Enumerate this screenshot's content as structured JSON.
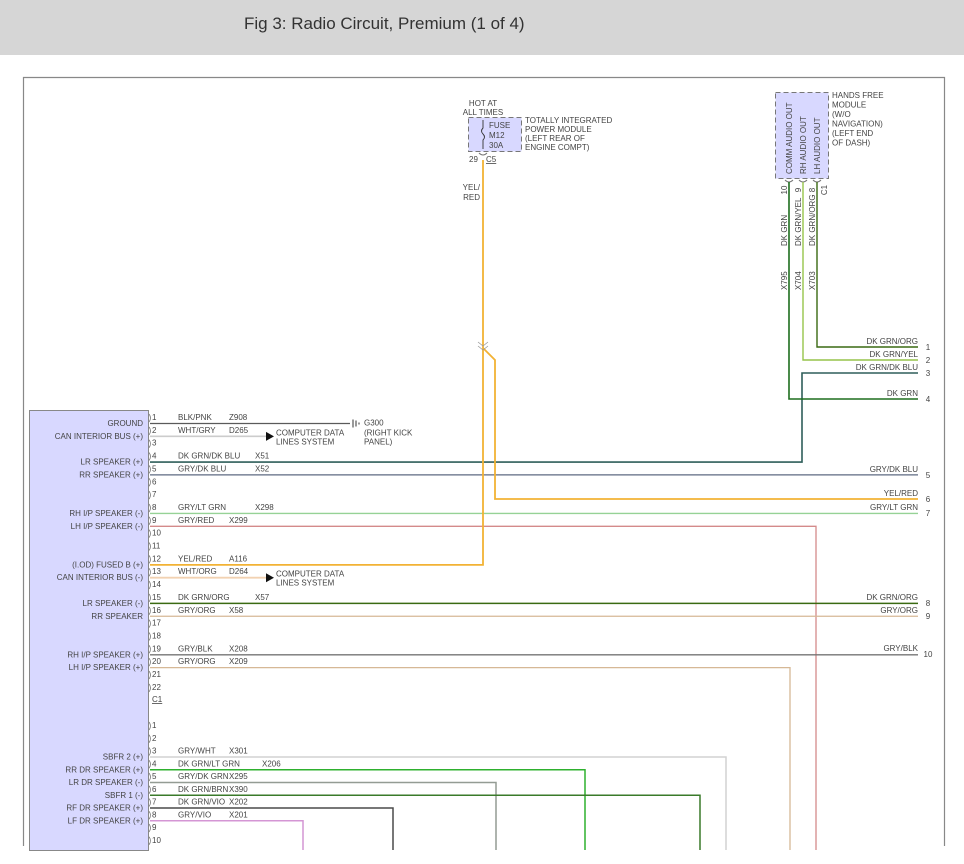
{
  "header": {
    "title": "Fig 3: Radio Circuit, Premium (1 of 4)"
  },
  "fuse": {
    "hot_label": [
      "HOT AT",
      "ALL TIMES"
    ],
    "fuse_text": [
      "FUSE",
      "M12",
      "30A"
    ],
    "module_label": [
      "TOTALLY INTEGRATED",
      "POWER MODULE",
      "(LEFT REAR OF",
      "ENGINE COMPT)"
    ],
    "pin": "29",
    "connector": "C5",
    "wire_color": [
      "YEL/",
      "RED"
    ]
  },
  "hands_free": {
    "module_label": [
      "HANDS FREE",
      "MODULE",
      "(W/O",
      "NAVIGATION)",
      "(LEFT END",
      "OF DASH)"
    ],
    "connector": "C1",
    "pins": [
      {
        "func": "COMM AUDIO OUT",
        "pin": "10",
        "color": "DK GRN",
        "circuit": "X795"
      },
      {
        "func": "RH AUDIO OUT",
        "pin": "9",
        "color": "DK GRN/YEL",
        "circuit": "X704"
      },
      {
        "func": "LH AUDIO OUT",
        "pin": "8",
        "color": "DK GRN/ORG",
        "circuit": "X703"
      }
    ]
  },
  "ground": {
    "label": "G300",
    "location": [
      "(RIGHT KICK",
      "PANEL)"
    ]
  },
  "data_lines_label": [
    "COMPUTER DATA",
    "LINES SYSTEM"
  ],
  "radio_c1": {
    "connector": "C1",
    "pins": [
      {
        "pin": "1",
        "func": "GROUND",
        "color": "BLK/PNK",
        "circuit": "Z908"
      },
      {
        "pin": "2",
        "func": "CAN INTERIOR BUS (+)",
        "color": "WHT/GRY",
        "circuit": "D265"
      },
      {
        "pin": "3",
        "func": "",
        "color": "",
        "circuit": ""
      },
      {
        "pin": "4",
        "func": "LR SPEAKER (+)",
        "color": "DK GRN/DK BLU",
        "circuit": "X51"
      },
      {
        "pin": "5",
        "func": "RR SPEAKER (+)",
        "color": "GRY/DK BLU",
        "circuit": "X52"
      },
      {
        "pin": "6",
        "func": "",
        "color": "",
        "circuit": ""
      },
      {
        "pin": "7",
        "func": "",
        "color": "",
        "circuit": ""
      },
      {
        "pin": "8",
        "func": "RH I/P SPEAKER (-)",
        "color": "GRY/LT GRN",
        "circuit": "X298"
      },
      {
        "pin": "9",
        "func": "LH I/P SPEAKER (-)",
        "color": "GRY/RED",
        "circuit": "X299"
      },
      {
        "pin": "10",
        "func": "",
        "color": "",
        "circuit": ""
      },
      {
        "pin": "11",
        "func": "",
        "color": "",
        "circuit": ""
      },
      {
        "pin": "12",
        "func": "(I.OD) FUSED B (+)",
        "color": "YEL/RED",
        "circuit": "A116"
      },
      {
        "pin": "13",
        "func": "CAN INTERIOR BUS (-)",
        "color": "WHT/ORG",
        "circuit": "D264"
      },
      {
        "pin": "14",
        "func": "",
        "color": "",
        "circuit": ""
      },
      {
        "pin": "15",
        "func": "LR SPEAKER (-)",
        "color": "DK GRN/ORG",
        "circuit": "X57"
      },
      {
        "pin": "16",
        "func": "RR SPEAKER",
        "color": "GRY/ORG",
        "circuit": "X58"
      },
      {
        "pin": "17",
        "func": "",
        "color": "",
        "circuit": ""
      },
      {
        "pin": "18",
        "func": "",
        "color": "",
        "circuit": ""
      },
      {
        "pin": "19",
        "func": "RH I/P SPEAKER (+)",
        "color": "GRY/BLK",
        "circuit": "X208"
      },
      {
        "pin": "20",
        "func": "LH I/P SPEAKER (+)",
        "color": "GRY/ORG",
        "circuit": "X209"
      },
      {
        "pin": "21",
        "func": "",
        "color": "",
        "circuit": ""
      },
      {
        "pin": "22",
        "func": "",
        "color": "",
        "circuit": ""
      }
    ]
  },
  "radio_c2": {
    "pins": [
      {
        "pin": "1",
        "func": "",
        "color": "",
        "circuit": ""
      },
      {
        "pin": "2",
        "func": "",
        "color": "",
        "circuit": ""
      },
      {
        "pin": "3",
        "func": "SBFR 2 (+)",
        "color": "GRY/WHT",
        "circuit": "X301"
      },
      {
        "pin": "4",
        "func": "RR DR SPEAKER (+)",
        "color": "DK GRN/LT GRN",
        "circuit": "X206"
      },
      {
        "pin": "5",
        "func": "LR DR SPEAKER (-)",
        "color": "GRY/DK GRN",
        "circuit": "X295"
      },
      {
        "pin": "6",
        "func": "SBFR 1 (-)",
        "color": "DK GRN/BRN",
        "circuit": "X390"
      },
      {
        "pin": "7",
        "func": "RF DR SPEAKER (+)",
        "color": "DK GRN/VIO",
        "circuit": "X202"
      },
      {
        "pin": "8",
        "func": "LF DR SPEAKER (+)",
        "color": "GRY/VIO",
        "circuit": "X201"
      },
      {
        "pin": "9",
        "func": "",
        "color": "",
        "circuit": ""
      },
      {
        "pin": "10",
        "func": "",
        "color": "",
        "circuit": ""
      }
    ]
  },
  "offpage": [
    {
      "ref": "1",
      "color": "DK GRN/ORG"
    },
    {
      "ref": "2",
      "color": "DK GRN/YEL"
    },
    {
      "ref": "3",
      "color": "DK GRN/DK BLU"
    },
    {
      "ref": "4",
      "color": "DK GRN"
    },
    {
      "ref": "5",
      "color": "GRY/DK BLU"
    },
    {
      "ref": "6",
      "color": "YEL/RED"
    },
    {
      "ref": "7",
      "color": "GRY/LT GRN"
    },
    {
      "ref": "8",
      "color": "DK GRN/ORG"
    },
    {
      "ref": "9",
      "color": "GRY/ORG"
    },
    {
      "ref": "10",
      "color": "GRY/BLK"
    }
  ],
  "wire_colors": {
    "BLK/PNK": "#5a5a5a",
    "WHT/GRY": "#cccccc",
    "DK GRN/DK BLU": "#2e5e5a",
    "GRY/DK BLU": "#5e6a82",
    "GRY/LT GRN": "#96d296",
    "GRY/RED": "#d48a8a",
    "YEL/RED": "#f2b234",
    "WHT/ORG": "#f2d2b2",
    "DK GRN/ORG": "#3a6a12",
    "GRY/ORG": "#d6b896",
    "GRY/BLK": "#757575",
    "GRY/WHT": "#d2d2d2",
    "DK GRN/LT GRN": "#2eb02e",
    "GRY/DK GRN": "#949c94",
    "DK GRN/BRN": "#3a7a2a",
    "DK GRN/VIO": "#4a4a4a",
    "GRY/VIO": "#d496d4",
    "DK GRN": "#1e6e1e",
    "DK GRN/YEL": "#96c44a",
    "module_fill": "#d8d8ff"
  }
}
